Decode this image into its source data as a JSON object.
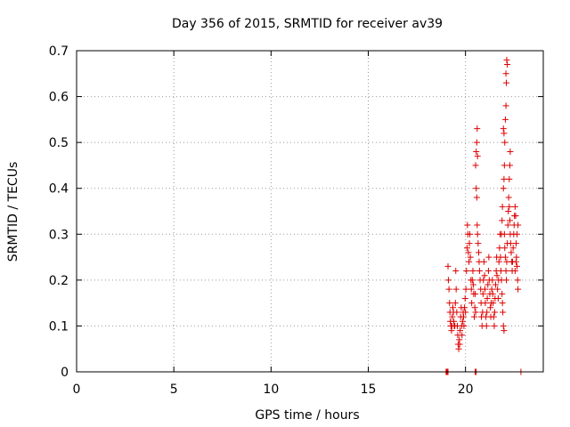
{
  "chart_data": {
    "type": "scatter",
    "title": "Day 356 of 2015, SRMTID for receiver av39",
    "xlabel": "GPS time / hours",
    "ylabel": "SRMTID / TECUs",
    "xlim": [
      0,
      24
    ],
    "ylim": [
      0,
      0.7
    ],
    "xticks": [
      0,
      5,
      10,
      15,
      20
    ],
    "yticks": [
      0,
      0.1,
      0.2,
      0.3,
      0.4,
      0.5,
      0.6,
      0.7
    ],
    "xtick_labels": [
      "0",
      "5",
      "10",
      "15",
      "20"
    ],
    "ytick_labels": [
      "0",
      "0.1",
      "0.2",
      "0.3",
      "0.4",
      "0.5",
      "0.6",
      "0.7"
    ],
    "grid": true,
    "marker": "+",
    "color": "#dd0000",
    "series": [
      {
        "points": [
          [
            19.0,
            0.0
          ],
          [
            19.02,
            0.0
          ],
          [
            19.05,
            0.0
          ],
          [
            19.08,
            0.0
          ],
          [
            19.1,
            0.0
          ],
          [
            19.1,
            0.23
          ],
          [
            19.12,
            0.2
          ],
          [
            19.15,
            0.18
          ],
          [
            19.18,
            0.15
          ],
          [
            19.2,
            0.13
          ],
          [
            19.22,
            0.11
          ],
          [
            19.25,
            0.1
          ],
          [
            19.28,
            0.09
          ],
          [
            19.3,
            0.1
          ],
          [
            19.32,
            0.12
          ],
          [
            19.35,
            0.14
          ],
          [
            19.38,
            0.13
          ],
          [
            19.4,
            0.11
          ],
          [
            19.42,
            0.1
          ],
          [
            19.45,
            0.1
          ],
          [
            19.48,
            0.15
          ],
          [
            19.5,
            0.22
          ],
          [
            19.52,
            0.18
          ],
          [
            19.55,
            0.13
          ],
          [
            19.58,
            0.1
          ],
          [
            19.6,
            0.08
          ],
          [
            19.62,
            0.06
          ],
          [
            19.65,
            0.05
          ],
          [
            19.68,
            0.07
          ],
          [
            19.7,
            0.06
          ],
          [
            19.72,
            0.09
          ],
          [
            19.75,
            0.12
          ],
          [
            19.78,
            0.14
          ],
          [
            19.8,
            0.1
          ],
          [
            19.82,
            0.08
          ],
          [
            19.85,
            0.11
          ],
          [
            19.88,
            0.13
          ],
          [
            19.9,
            0.12
          ],
          [
            19.92,
            0.1
          ],
          [
            19.95,
            0.14
          ],
          [
            19.98,
            0.16
          ],
          [
            20.0,
            0.13
          ],
          [
            20.02,
            0.18
          ],
          [
            20.05,
            0.22
          ],
          [
            20.08,
            0.27
          ],
          [
            20.1,
            0.32
          ],
          [
            20.12,
            0.3
          ],
          [
            20.15,
            0.26
          ],
          [
            20.18,
            0.24
          ],
          [
            20.2,
            0.28
          ],
          [
            20.22,
            0.3
          ],
          [
            20.25,
            0.25
          ],
          [
            20.28,
            0.2
          ],
          [
            20.3,
            0.18
          ],
          [
            20.32,
            0.15
          ],
          [
            20.35,
            0.2
          ],
          [
            20.38,
            0.22
          ],
          [
            20.4,
            0.19
          ],
          [
            20.42,
            0.17
          ],
          [
            20.45,
            0.12
          ],
          [
            20.48,
            0.14
          ],
          [
            20.5,
            0.17
          ],
          [
            20.52,
            0.13
          ],
          [
            20.5,
            0.0
          ],
          [
            20.55,
            0.0
          ],
          [
            20.52,
            0.45
          ],
          [
            20.55,
            0.48
          ],
          [
            20.58,
            0.5
          ],
          [
            20.6,
            0.53
          ],
          [
            20.62,
            0.47
          ],
          [
            20.55,
            0.4
          ],
          [
            20.58,
            0.38
          ],
          [
            20.6,
            0.32
          ],
          [
            20.62,
            0.3
          ],
          [
            20.65,
            0.28
          ],
          [
            20.68,
            0.26
          ],
          [
            20.7,
            0.24
          ],
          [
            20.72,
            0.22
          ],
          [
            20.75,
            0.2
          ],
          [
            20.78,
            0.18
          ],
          [
            20.8,
            0.15
          ],
          [
            20.82,
            0.12
          ],
          [
            20.85,
            0.1
          ],
          [
            20.88,
            0.13
          ],
          [
            20.9,
            0.17
          ],
          [
            20.92,
            0.2
          ],
          [
            20.95,
            0.24
          ],
          [
            20.98,
            0.21
          ],
          [
            21.0,
            0.18
          ],
          [
            21.02,
            0.15
          ],
          [
            21.05,
            0.12
          ],
          [
            21.08,
            0.1
          ],
          [
            21.1,
            0.13
          ],
          [
            21.12,
            0.16
          ],
          [
            21.15,
            0.19
          ],
          [
            21.18,
            0.22
          ],
          [
            21.2,
            0.25
          ],
          [
            21.22,
            0.2
          ],
          [
            21.25,
            0.17
          ],
          [
            21.28,
            0.14
          ],
          [
            21.3,
            0.12
          ],
          [
            21.32,
            0.15
          ],
          [
            21.35,
            0.18
          ],
          [
            21.38,
            0.2
          ],
          [
            21.4,
            0.17
          ],
          [
            21.42,
            0.15
          ],
          [
            21.45,
            0.12
          ],
          [
            21.48,
            0.1
          ],
          [
            21.5,
            0.13
          ],
          [
            21.52,
            0.16
          ],
          [
            21.55,
            0.19
          ],
          [
            21.58,
            0.22
          ],
          [
            21.6,
            0.25
          ],
          [
            21.62,
            0.21
          ],
          [
            21.65,
            0.18
          ],
          [
            21.68,
            0.16
          ],
          [
            21.7,
            0.2
          ],
          [
            21.72,
            0.24
          ],
          [
            21.75,
            0.27
          ],
          [
            21.78,
            0.3
          ],
          [
            21.8,
            0.25
          ],
          [
            21.82,
            0.22
          ],
          [
            21.85,
            0.2
          ],
          [
            21.88,
            0.17
          ],
          [
            21.9,
            0.15
          ],
          [
            21.92,
            0.13
          ],
          [
            21.95,
            0.1
          ],
          [
            21.98,
            0.09
          ],
          [
            21.85,
            0.3
          ],
          [
            21.88,
            0.33
          ],
          [
            21.9,
            0.36
          ],
          [
            21.95,
            0.4
          ],
          [
            21.98,
            0.42
          ],
          [
            22.0,
            0.45
          ],
          [
            22.02,
            0.5
          ],
          [
            22.05,
            0.55
          ],
          [
            21.95,
            0.53
          ],
          [
            21.98,
            0.52
          ],
          [
            22.08,
            0.58
          ],
          [
            22.1,
            0.63
          ],
          [
            22.12,
            0.68
          ],
          [
            22.15,
            0.67
          ],
          [
            22.08,
            0.65
          ],
          [
            22.0,
            0.3
          ],
          [
            22.02,
            0.27
          ],
          [
            22.05,
            0.25
          ],
          [
            22.08,
            0.22
          ],
          [
            22.1,
            0.2
          ],
          [
            22.12,
            0.24
          ],
          [
            22.15,
            0.28
          ],
          [
            22.18,
            0.32
          ],
          [
            22.2,
            0.35
          ],
          [
            22.22,
            0.38
          ],
          [
            22.25,
            0.42
          ],
          [
            22.28,
            0.45
          ],
          [
            22.3,
            0.48
          ],
          [
            22.25,
            0.36
          ],
          [
            22.28,
            0.33
          ],
          [
            22.3,
            0.3
          ],
          [
            22.32,
            0.28
          ],
          [
            22.35,
            0.26
          ],
          [
            22.38,
            0.24
          ],
          [
            22.4,
            0.22
          ],
          [
            22.42,
            0.24
          ],
          [
            22.45,
            0.27
          ],
          [
            22.48,
            0.3
          ],
          [
            22.5,
            0.32
          ],
          [
            22.52,
            0.34
          ],
          [
            22.55,
            0.36
          ],
          [
            22.58,
            0.34
          ],
          [
            22.6,
            0.28
          ],
          [
            22.62,
            0.25
          ],
          [
            22.65,
            0.23
          ],
          [
            22.68,
            0.2
          ],
          [
            22.7,
            0.18
          ],
          [
            22.55,
            0.22
          ],
          [
            22.6,
            0.24
          ],
          [
            22.65,
            0.3
          ],
          [
            22.7,
            0.32
          ],
          [
            22.85,
            0.0
          ]
        ]
      }
    ]
  }
}
